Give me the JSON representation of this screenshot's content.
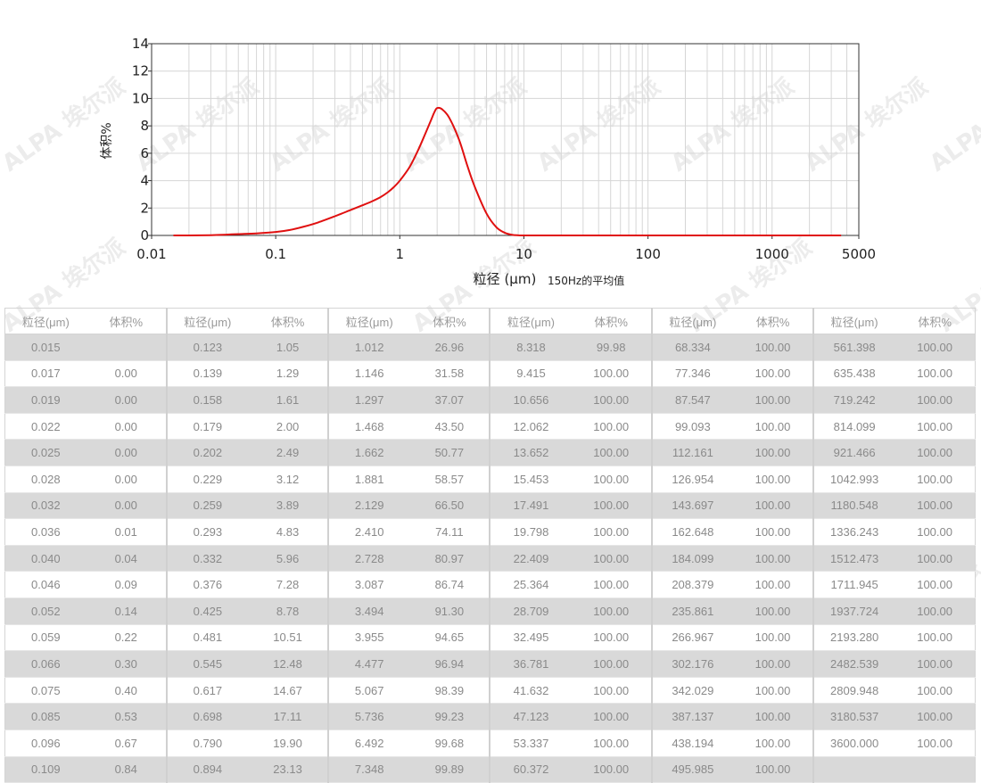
{
  "chart_data": {
    "type": "line",
    "ylabel": "体积%",
    "xlabel_main": "粒径 (μm)",
    "xlabel_note": "150Hz的平均值",
    "x_scale": "log",
    "xlim": [
      0.01,
      5000
    ],
    "ylim": [
      0,
      14
    ],
    "x_ticks": [
      0.01,
      0.1,
      1,
      10,
      100,
      1000,
      5000
    ],
    "x_tick_labels": [
      "0.01",
      "0.1",
      "1",
      "10",
      "100",
      "1000",
      "5000"
    ],
    "y_ticks": [
      0,
      2,
      4,
      6,
      8,
      10,
      12,
      14
    ],
    "y_tick_labels": [
      "0",
      "2",
      "4",
      "6",
      "8",
      "10",
      "12",
      "14"
    ],
    "grid": true,
    "line_color": "#e01010",
    "series": [
      {
        "x": [
          0.015,
          0.02,
          0.03,
          0.04,
          0.05,
          0.07,
          0.1,
          0.13,
          0.17,
          0.22,
          0.3,
          0.4,
          0.5,
          0.6,
          0.7,
          0.8,
          0.9,
          1.0,
          1.2,
          1.4,
          1.6,
          1.8,
          1.9,
          2.0,
          2.2,
          2.5,
          3.0,
          3.5,
          4.0,
          5.0,
          6.0,
          7.0,
          8.0,
          9.0,
          10,
          20,
          100,
          1000,
          3600
        ],
        "y": [
          0,
          0,
          0.02,
          0.06,
          0.1,
          0.15,
          0.25,
          0.4,
          0.65,
          0.95,
          1.4,
          1.85,
          2.2,
          2.5,
          2.8,
          3.15,
          3.55,
          4.0,
          5.0,
          6.2,
          7.4,
          8.5,
          9.0,
          9.3,
          9.2,
          8.6,
          7.0,
          5.1,
          3.6,
          1.6,
          0.6,
          0.2,
          0.05,
          0.01,
          0,
          0,
          0,
          0,
          0
        ]
      }
    ]
  },
  "table": {
    "col_headers": [
      "粒径(μm)",
      "体积%"
    ],
    "groups": [
      {
        "rows": [
          [
            "0.015",
            ""
          ],
          [
            "0.017",
            "0.00"
          ],
          [
            "0.019",
            "0.00"
          ],
          [
            "0.022",
            "0.00"
          ],
          [
            "0.025",
            "0.00"
          ],
          [
            "0.028",
            "0.00"
          ],
          [
            "0.032",
            "0.00"
          ],
          [
            "0.036",
            "0.01"
          ],
          [
            "0.040",
            "0.04"
          ],
          [
            "0.046",
            "0.09"
          ],
          [
            "0.052",
            "0.14"
          ],
          [
            "0.059",
            "0.22"
          ],
          [
            "0.066",
            "0.30"
          ],
          [
            "0.075",
            "0.40"
          ],
          [
            "0.085",
            "0.53"
          ],
          [
            "0.096",
            "0.67"
          ],
          [
            "0.109",
            "0.84"
          ]
        ]
      },
      {
        "rows": [
          [
            "0.123",
            "1.05"
          ],
          [
            "0.139",
            "1.29"
          ],
          [
            "0.158",
            "1.61"
          ],
          [
            "0.179",
            "2.00"
          ],
          [
            "0.202",
            "2.49"
          ],
          [
            "0.229",
            "3.12"
          ],
          [
            "0.259",
            "3.89"
          ],
          [
            "0.293",
            "4.83"
          ],
          [
            "0.332",
            "5.96"
          ],
          [
            "0.376",
            "7.28"
          ],
          [
            "0.425",
            "8.78"
          ],
          [
            "0.481",
            "10.51"
          ],
          [
            "0.545",
            "12.48"
          ],
          [
            "0.617",
            "14.67"
          ],
          [
            "0.698",
            "17.11"
          ],
          [
            "0.790",
            "19.90"
          ],
          [
            "0.894",
            "23.13"
          ]
        ]
      },
      {
        "rows": [
          [
            "1.012",
            "26.96"
          ],
          [
            "1.146",
            "31.58"
          ],
          [
            "1.297",
            "37.07"
          ],
          [
            "1.468",
            "43.50"
          ],
          [
            "1.662",
            "50.77"
          ],
          [
            "1.881",
            "58.57"
          ],
          [
            "2.129",
            "66.50"
          ],
          [
            "2.410",
            "74.11"
          ],
          [
            "2.728",
            "80.97"
          ],
          [
            "3.087",
            "86.74"
          ],
          [
            "3.494",
            "91.30"
          ],
          [
            "3.955",
            "94.65"
          ],
          [
            "4.477",
            "96.94"
          ],
          [
            "5.067",
            "98.39"
          ],
          [
            "5.736",
            "99.23"
          ],
          [
            "6.492",
            "99.68"
          ],
          [
            "7.348",
            "99.89"
          ]
        ]
      },
      {
        "rows": [
          [
            "8.318",
            "99.98"
          ],
          [
            "9.415",
            "100.00"
          ],
          [
            "10.656",
            "100.00"
          ],
          [
            "12.062",
            "100.00"
          ],
          [
            "13.652",
            "100.00"
          ],
          [
            "15.453",
            "100.00"
          ],
          [
            "17.491",
            "100.00"
          ],
          [
            "19.798",
            "100.00"
          ],
          [
            "22.409",
            "100.00"
          ],
          [
            "25.364",
            "100.00"
          ],
          [
            "28.709",
            "100.00"
          ],
          [
            "32.495",
            "100.00"
          ],
          [
            "36.781",
            "100.00"
          ],
          [
            "41.632",
            "100.00"
          ],
          [
            "47.123",
            "100.00"
          ],
          [
            "53.337",
            "100.00"
          ],
          [
            "60.372",
            "100.00"
          ]
        ]
      },
      {
        "rows": [
          [
            "68.334",
            "100.00"
          ],
          [
            "77.346",
            "100.00"
          ],
          [
            "87.547",
            "100.00"
          ],
          [
            "99.093",
            "100.00"
          ],
          [
            "112.161",
            "100.00"
          ],
          [
            "126.954",
            "100.00"
          ],
          [
            "143.697",
            "100.00"
          ],
          [
            "162.648",
            "100.00"
          ],
          [
            "184.099",
            "100.00"
          ],
          [
            "208.379",
            "100.00"
          ],
          [
            "235.861",
            "100.00"
          ],
          [
            "266.967",
            "100.00"
          ],
          [
            "302.176",
            "100.00"
          ],
          [
            "342.029",
            "100.00"
          ],
          [
            "387.137",
            "100.00"
          ],
          [
            "438.194",
            "100.00"
          ],
          [
            "495.985",
            "100.00"
          ]
        ]
      },
      {
        "rows": [
          [
            "561.398",
            "100.00"
          ],
          [
            "635.438",
            "100.00"
          ],
          [
            "719.242",
            "100.00"
          ],
          [
            "814.099",
            "100.00"
          ],
          [
            "921.466",
            "100.00"
          ],
          [
            "1042.993",
            "100.00"
          ],
          [
            "1180.548",
            "100.00"
          ],
          [
            "1336.243",
            "100.00"
          ],
          [
            "1512.473",
            "100.00"
          ],
          [
            "1711.945",
            "100.00"
          ],
          [
            "1937.724",
            "100.00"
          ],
          [
            "2193.280",
            "100.00"
          ],
          [
            "2482.539",
            "100.00"
          ],
          [
            "2809.948",
            "100.00"
          ],
          [
            "3180.537",
            "100.00"
          ],
          [
            "3600.000",
            "100.00"
          ],
          [
            "",
            ""
          ]
        ]
      }
    ]
  },
  "watermark": {
    "text": "ALPA 埃尔派",
    "color": "#aaaaaa"
  }
}
